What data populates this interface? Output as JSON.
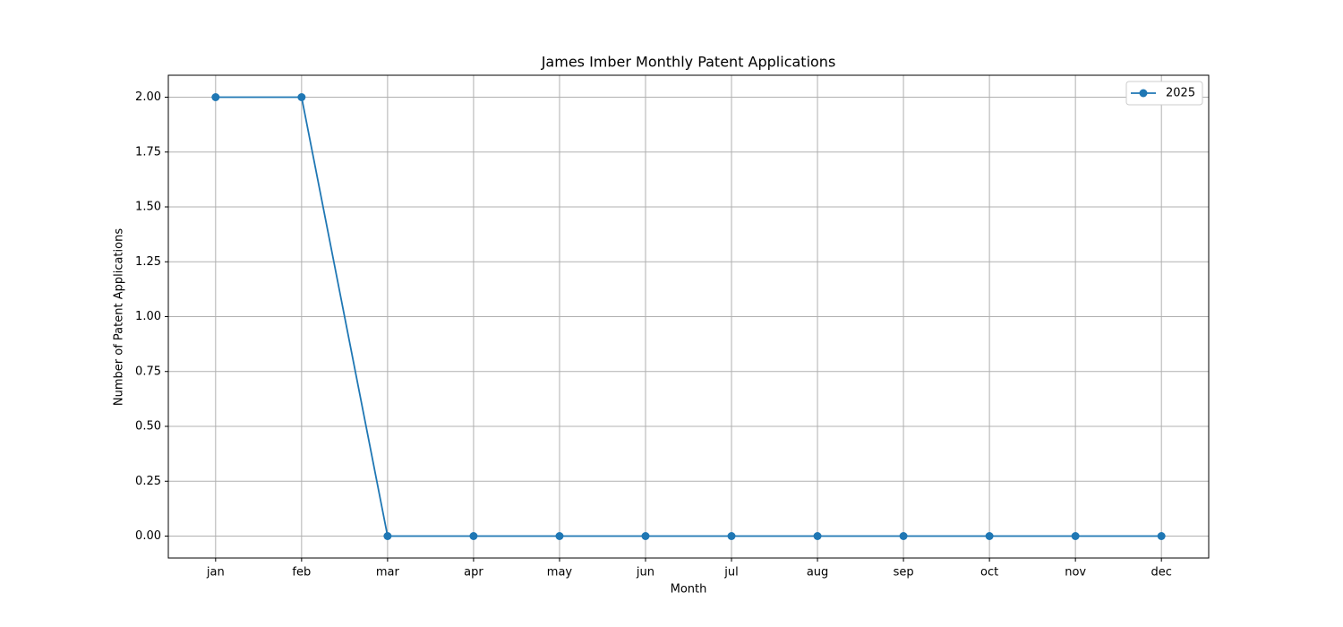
{
  "chart_data": {
    "type": "line",
    "title": "James Imber Monthly Patent Applications",
    "x_label": "Month",
    "y_label": "Number of Patent Applications",
    "categories": [
      "jan",
      "feb",
      "mar",
      "apr",
      "may",
      "jun",
      "jul",
      "aug",
      "sep",
      "oct",
      "nov",
      "dec"
    ],
    "series": [
      {
        "name": "2025",
        "color": "#1f77b4",
        "values": [
          2,
          2,
          0,
          0,
          0,
          0,
          0,
          0,
          0,
          0,
          0,
          0
        ]
      }
    ],
    "ylim": [
      -0.1,
      2.1
    ],
    "yticks": [
      {
        "value": 0,
        "label": "0.00"
      },
      {
        "value": 0.25,
        "label": "0.25"
      },
      {
        "value": 0.5,
        "label": "0.50"
      },
      {
        "value": 0.75,
        "label": "0.75"
      },
      {
        "value": 1,
        "label": "1.00"
      },
      {
        "value": 1.25,
        "label": "1.25"
      },
      {
        "value": 1.5,
        "label": "1.50"
      },
      {
        "value": 1.75,
        "label": "1.75"
      },
      {
        "value": 2,
        "label": "2.00"
      }
    ],
    "grid": true,
    "legend": "upper right"
  }
}
